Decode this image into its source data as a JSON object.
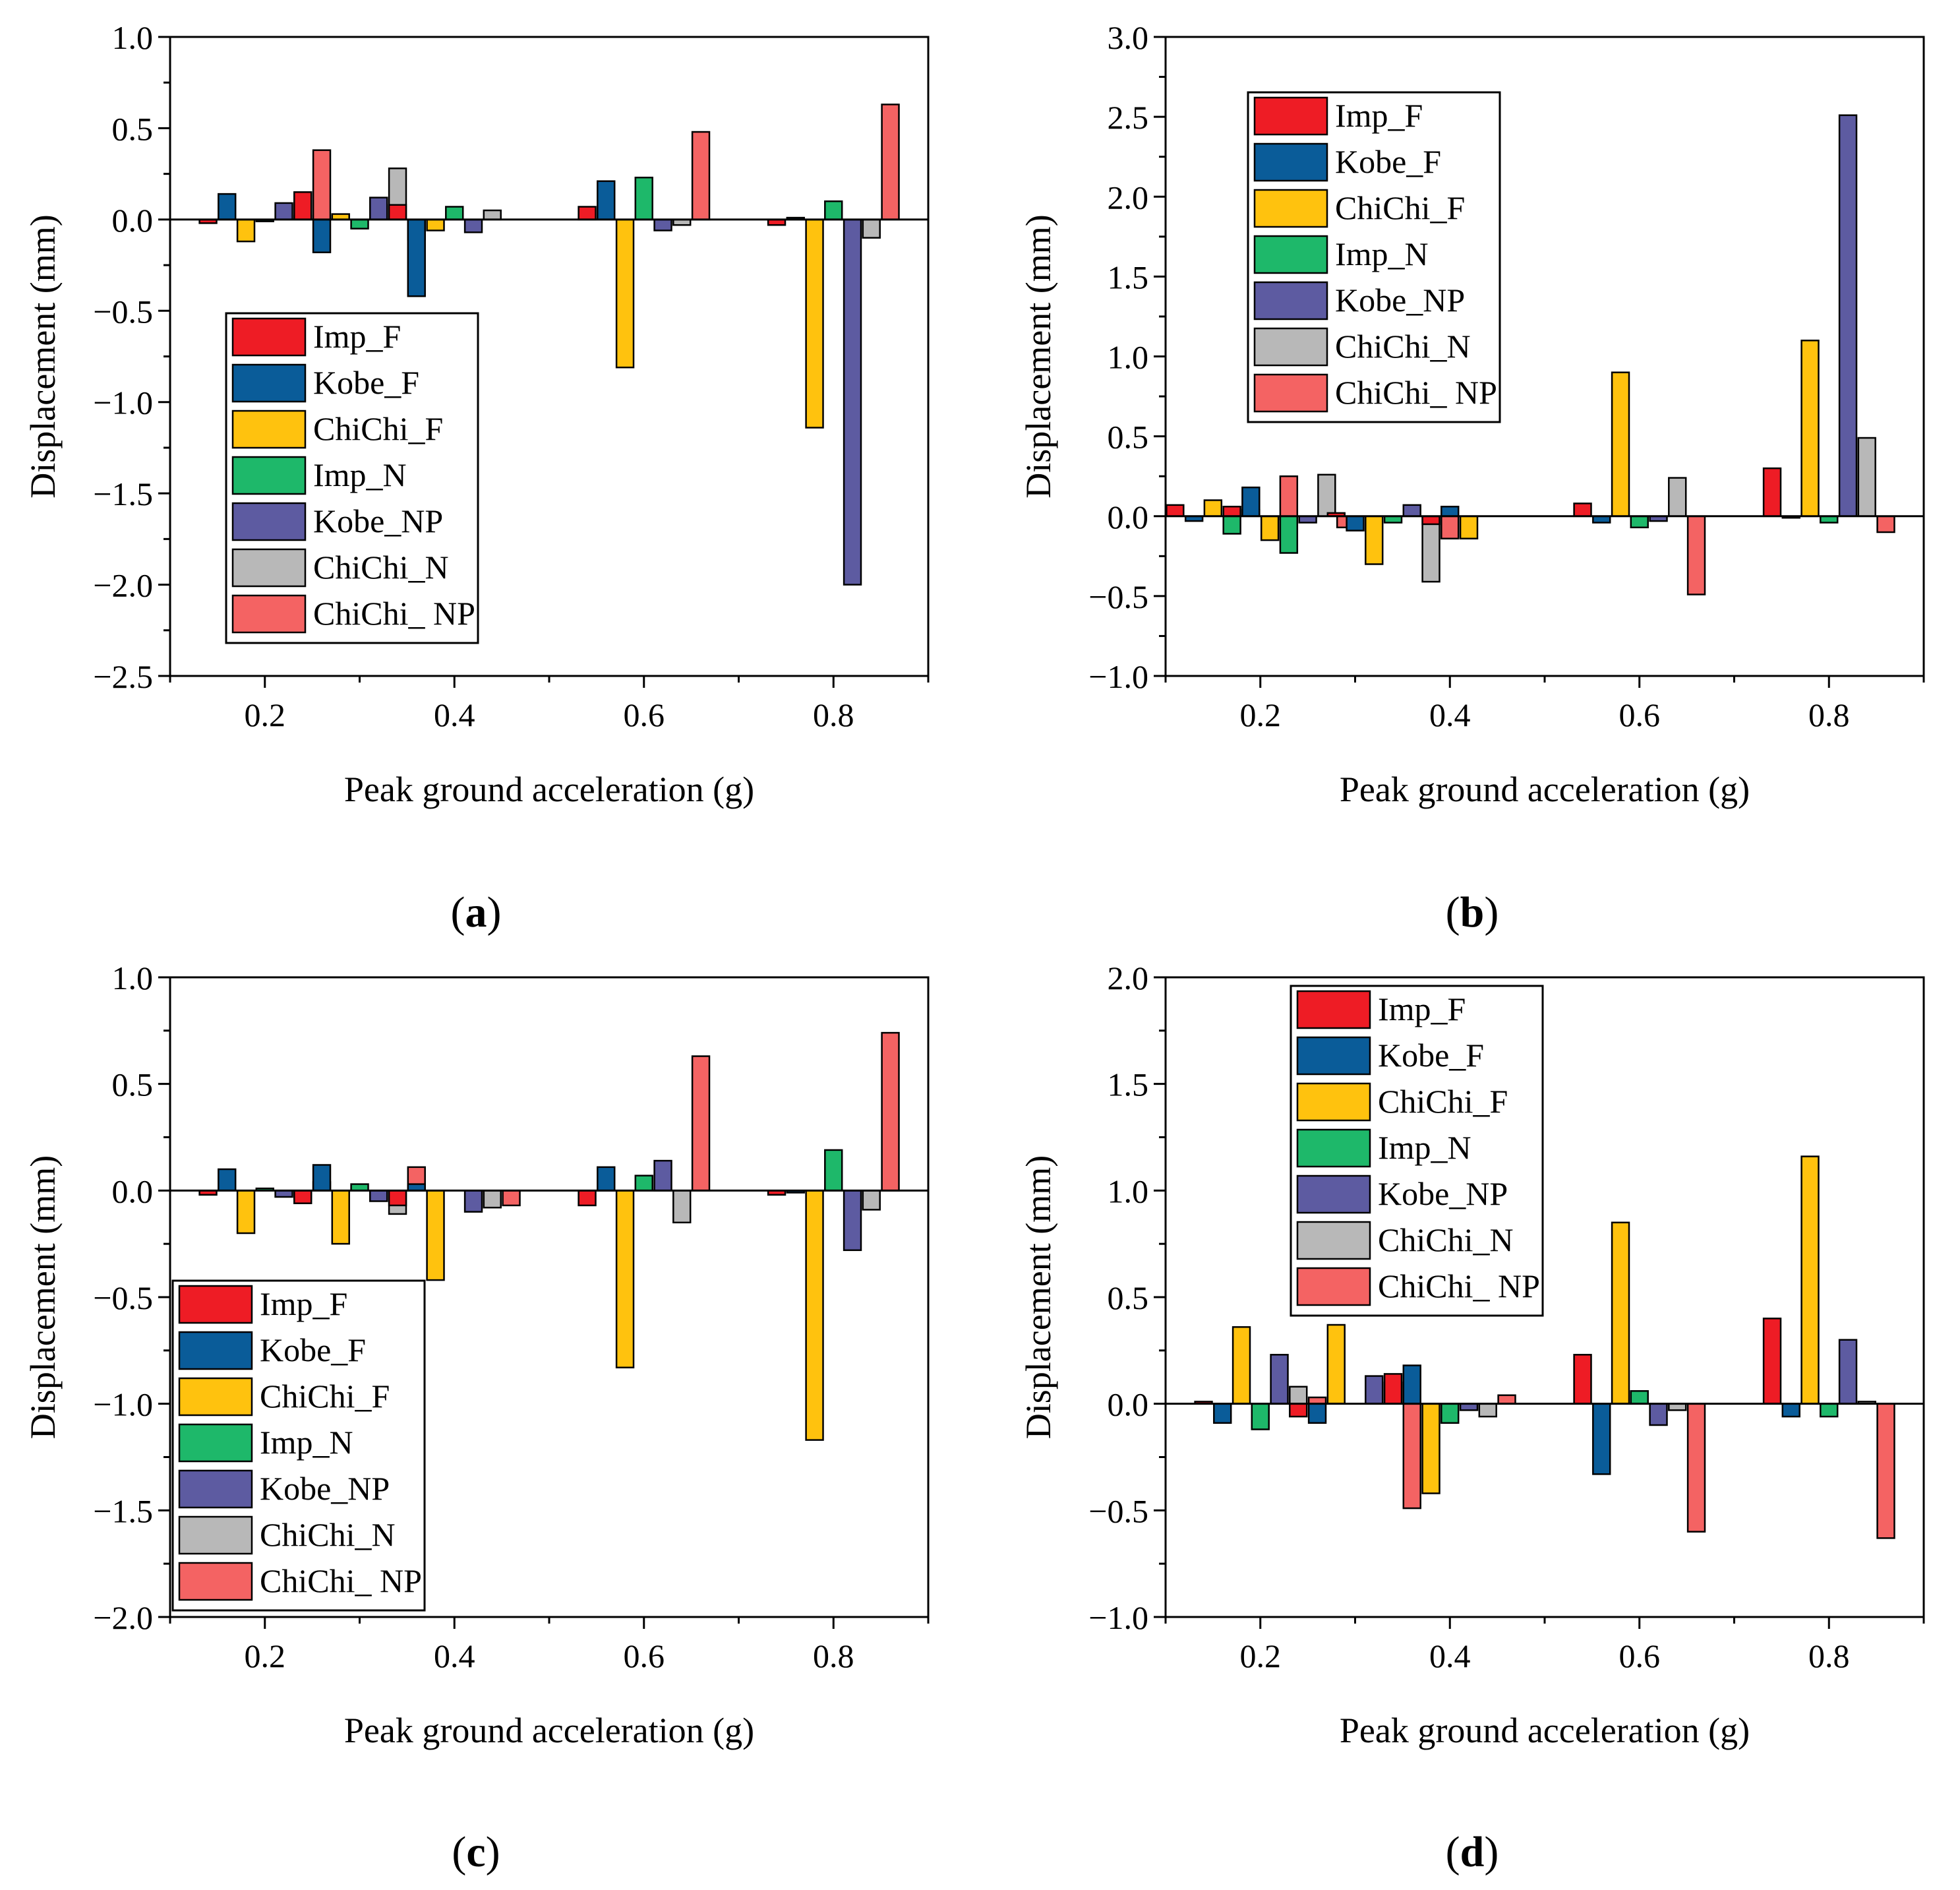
{
  "figure": {
    "panel_labels": [
      "a",
      "b",
      "c",
      "d"
    ],
    "series_names": [
      "Imp_F",
      "Kobe_F",
      "ChiChi_F",
      "Imp_N",
      "Kobe_NP",
      "ChiChi_N",
      "ChiChi_ NP"
    ],
    "colors": {
      "Imp_F": "#ee1c25",
      "Kobe_F": "#0a5c99",
      "ChiChi_F": "#ffc20e",
      "Imp_N": "#1eb86a",
      "Kobe_NP": "#5d5ba1",
      "ChiChi_N": "#b8b8b8",
      "ChiChi_ NP": "#f46363"
    }
  },
  "chart_data": [
    {
      "type": "bar",
      "panel": "a",
      "xlabel": "Peak ground acceleration (g)",
      "ylabel": "Displacement (mm)",
      "xlim": [
        0.1,
        0.9
      ],
      "ylim": [
        -2.5,
        1.0
      ],
      "xticks": [
        0.2,
        0.4,
        0.6,
        0.8
      ],
      "xtick_labels": [
        "0.2",
        "0.4",
        "0.6",
        "0.8"
      ],
      "yticks": [
        -2.5,
        -2.0,
        -1.5,
        -1.0,
        -0.5,
        0.0,
        0.5,
        1.0
      ],
      "ytick_labels": [
        "−2.5",
        "−2.0",
        "−1.5",
        "−1.0",
        "−0.5",
        "0.0",
        "0.5",
        "1.0"
      ],
      "legend_position": "lower-left",
      "groups": [
        {
          "center": 0.2,
          "values": [
            -0.02,
            0.14,
            -0.12,
            -0.01,
            0.09,
            0.02,
            0.38
          ]
        },
        {
          "center": 0.3,
          "values": [
            0.15,
            -0.18,
            0.03,
            -0.05,
            0.12,
            0.28,
            -0.11
          ]
        },
        {
          "center": 0.4,
          "values": [
            0.08,
            -0.42,
            -0.06,
            0.07,
            -0.07,
            0.05,
            0.0
          ]
        },
        {
          "center": 0.6,
          "values": [
            0.07,
            0.21,
            -0.81,
            0.23,
            -0.06,
            -0.03,
            0.48
          ]
        },
        {
          "center": 0.8,
          "values": [
            -0.03,
            0.01,
            -1.14,
            0.1,
            -2.0,
            -0.1,
            0.63
          ]
        }
      ]
    },
    {
      "type": "bar",
      "panel": "b",
      "xlabel": "Peak ground acceleration (g)",
      "ylabel": "Displacement (mm)",
      "xlim": [
        0.1,
        0.9
      ],
      "ylim": [
        -1.0,
        3.0
      ],
      "xticks": [
        0.2,
        0.4,
        0.6,
        0.8
      ],
      "xtick_labels": [
        "0.2",
        "0.4",
        "0.6",
        "0.8"
      ],
      "yticks": [
        -1.0,
        -0.5,
        0.0,
        0.5,
        1.0,
        1.5,
        2.0,
        2.5,
        3.0
      ],
      "ytick_labels": [
        "−1.0",
        "−0.5",
        "0.0",
        "0.5",
        "1.0",
        "1.5",
        "2.0",
        "2.5",
        "3.0"
      ],
      "legend_position": "top-left",
      "groups": [
        {
          "center": 0.17,
          "values": [
            0.07,
            -0.03,
            0.1,
            -0.11,
            0.04,
            -0.02,
            0.25
          ]
        },
        {
          "center": 0.23,
          "values": [
            0.06,
            0.18,
            -0.15,
            -0.23,
            -0.04,
            0.26,
            -0.07
          ]
        },
        {
          "center": 0.34,
          "values": [
            0.02,
            -0.09,
            -0.3,
            -0.04,
            0.07,
            -0.41,
            -0.14
          ]
        },
        {
          "center": 0.44,
          "values": [
            -0.05,
            0.06,
            -0.14,
            0.0,
            0.0,
            0.0,
            0.0
          ]
        },
        {
          "center": 0.6,
          "values": [
            0.08,
            -0.04,
            0.9,
            -0.07,
            -0.03,
            0.24,
            -0.49
          ]
        },
        {
          "center": 0.8,
          "values": [
            0.3,
            -0.01,
            1.1,
            -0.04,
            2.51,
            0.49,
            -0.1
          ]
        }
      ]
    },
    {
      "type": "bar",
      "panel": "c",
      "xlabel": "Peak ground acceleration (g)",
      "ylabel": "Displacement (mm)",
      "xlim": [
        0.1,
        0.9
      ],
      "ylim": [
        -2.0,
        1.0
      ],
      "xticks": [
        0.2,
        0.4,
        0.6,
        0.8
      ],
      "xtick_labels": [
        "0.2",
        "0.4",
        "0.6",
        "0.8"
      ],
      "yticks": [
        -2.0,
        -1.5,
        -1.0,
        -0.5,
        0.0,
        0.5,
        1.0
      ],
      "ytick_labels": [
        "−2.0",
        "−1.5",
        "−1.0",
        "−0.5",
        "0.0",
        "0.5",
        "1.0"
      ],
      "legend_position": "lower-left",
      "groups": [
        {
          "center": 0.2,
          "values": [
            -0.02,
            0.1,
            -0.2,
            0.01,
            -0.03,
            -0.04,
            0.04
          ]
        },
        {
          "center": 0.3,
          "values": [
            -0.06,
            0.12,
            -0.25,
            0.03,
            -0.05,
            -0.11,
            0.11
          ]
        },
        {
          "center": 0.4,
          "values": [
            -0.07,
            0.03,
            -0.42,
            0.0,
            -0.1,
            -0.08,
            -0.07
          ]
        },
        {
          "center": 0.6,
          "values": [
            -0.07,
            0.11,
            -0.83,
            0.07,
            0.14,
            -0.15,
            0.63
          ]
        },
        {
          "center": 0.8,
          "values": [
            -0.02,
            -0.01,
            -1.17,
            0.19,
            -0.28,
            -0.09,
            0.74
          ]
        }
      ]
    },
    {
      "type": "bar",
      "panel": "d",
      "xlabel": "Peak ground acceleration (g)",
      "ylabel": "Displacement (mm)",
      "xlim": [
        0.1,
        0.9
      ],
      "ylim": [
        -1.0,
        2.0
      ],
      "xticks": [
        0.2,
        0.4,
        0.6,
        0.8
      ],
      "xtick_labels": [
        "0.2",
        "0.4",
        "0.6",
        "0.8"
      ],
      "yticks": [
        -1.0,
        -0.5,
        0.0,
        0.5,
        1.0,
        1.5,
        2.0
      ],
      "ytick_labels": [
        "−1.0",
        "−0.5",
        "0.0",
        "0.5",
        "1.0",
        "1.5",
        "2.0"
      ],
      "legend_position": "top-center",
      "groups": [
        {
          "center": 0.2,
          "values": [
            0.01,
            -0.09,
            0.36,
            -0.12,
            0.23,
            0.08,
            0.03
          ]
        },
        {
          "center": 0.3,
          "values": [
            -0.06,
            -0.09,
            0.37,
            0.0,
            0.13,
            0.1,
            -0.49
          ]
        },
        {
          "center": 0.4,
          "values": [
            0.14,
            0.18,
            -0.42,
            -0.09,
            -0.03,
            -0.06,
            0.04
          ]
        },
        {
          "center": 0.6,
          "values": [
            0.23,
            -0.33,
            0.85,
            0.06,
            -0.1,
            -0.03,
            -0.6
          ]
        },
        {
          "center": 0.8,
          "values": [
            0.4,
            -0.06,
            1.16,
            -0.06,
            0.3,
            0.01,
            -0.63
          ]
        }
      ]
    }
  ]
}
